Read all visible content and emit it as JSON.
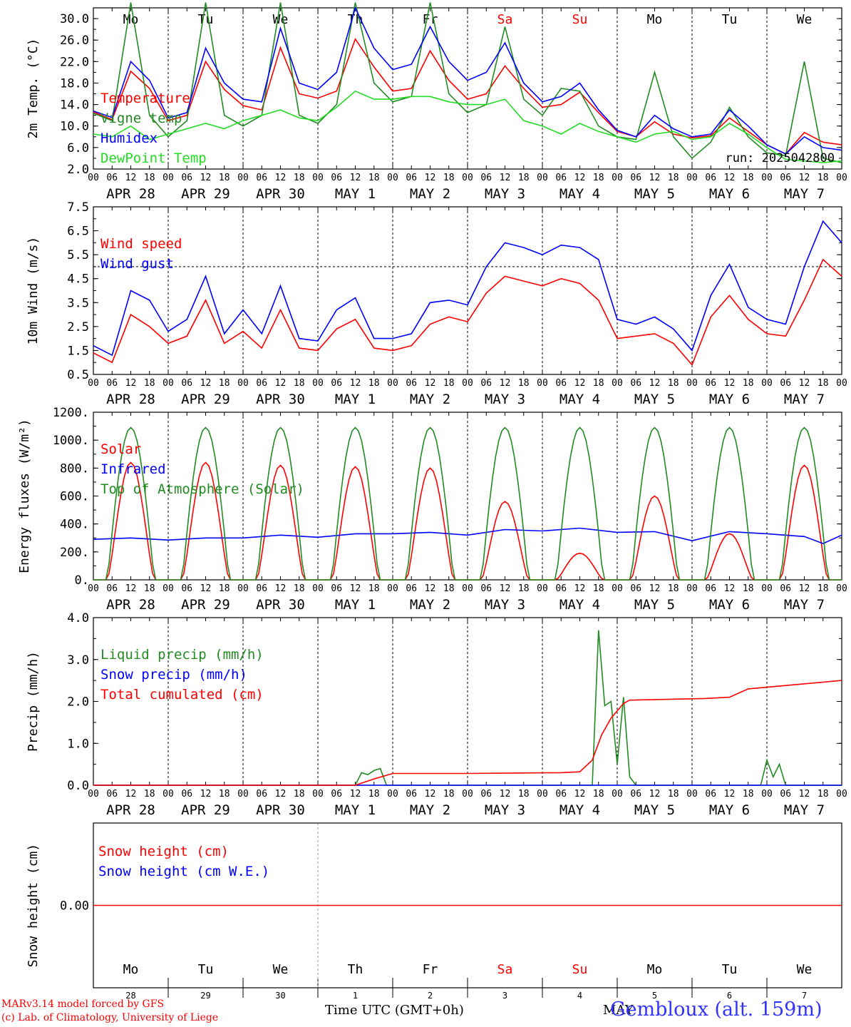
{
  "day_labels": [
    {
      "name": "Mo",
      "color": "#000000"
    },
    {
      "name": "Tu",
      "color": "#000000"
    },
    {
      "name": "We",
      "color": "#000000"
    },
    {
      "name": "Th",
      "color": "#000000"
    },
    {
      "name": "Fr",
      "color": "#000000"
    },
    {
      "name": "Sa",
      "color": "#ff0000"
    },
    {
      "name": "Su",
      "color": "#ff0000"
    },
    {
      "name": "Mo",
      "color": "#000000"
    },
    {
      "name": "Tu",
      "color": "#000000"
    },
    {
      "name": "We",
      "color": "#000000"
    }
  ],
  "date_labels": [
    "APR 28",
    "APR 29",
    "APR 30",
    "MAY  1",
    "MAY  2",
    "MAY  3",
    "MAY  4",
    "MAY  5",
    "MAY  6",
    "MAY  7"
  ],
  "hour_ticks": [
    "00",
    "06",
    "12",
    "18"
  ],
  "hour_ticks_end": "00",
  "day_numbers": [
    "28",
    "29",
    "30",
    "1",
    "2",
    "3",
    "4",
    "5",
    "6",
    "7"
  ],
  "month_label": "MAY",
  "footer": {
    "credit_line1": "MARv3.14 model forced by GFS",
    "credit_line2": "(c) Lab. of Climatology, University of Liege",
    "xlabel": "Time UTC (GMT+0h)",
    "station": "Gembloux (alt. 159m)"
  },
  "colors": {
    "red": "#ff0000",
    "green": "#228b22",
    "blue": "#0000ff",
    "lightgreen": "#22dd22",
    "station": "#3333ff"
  },
  "chart_data": [
    {
      "type": "line",
      "ylabel": "2m Temp. (°C)",
      "ylim": [
        2,
        32
      ],
      "yticks": [
        "2.0",
        "6.0",
        "10.0",
        "14.0",
        "18.0",
        "22.0",
        "26.0",
        "30.0"
      ],
      "show_day_labels": true,
      "annotation": "run: 2025042800",
      "x_unit": "hours since APR 28 00 UTC",
      "series": [
        {
          "name": "Temperature",
          "color": "red",
          "x": [
            0,
            6,
            12,
            18,
            24,
            30,
            36,
            42,
            48,
            54,
            60,
            66,
            72,
            78,
            84,
            90,
            96,
            102,
            108,
            114,
            120,
            126,
            132,
            138,
            144,
            150,
            156,
            162,
            168,
            174,
            180,
            186,
            192,
            198,
            204,
            210,
            216,
            222,
            228,
            234,
            240
          ],
          "y": [
            12.6,
            11.2,
            20.2,
            17.0,
            11.0,
            12.0,
            22.0,
            16.8,
            13.8,
            13.0,
            24.6,
            16.0,
            15.2,
            16.5,
            26.2,
            21.0,
            16.5,
            17.0,
            24.0,
            18.5,
            15.0,
            16.0,
            21.2,
            17.0,
            13.5,
            14.0,
            16.3,
            12.5,
            9.0,
            8.0,
            10.8,
            8.5,
            7.8,
            8.2,
            11.5,
            9.0,
            6.5,
            4.8,
            8.8,
            7.0,
            6.5
          ]
        },
        {
          "name": "Vigne temp",
          "color": "green",
          "x": [
            0,
            6,
            12,
            18,
            24,
            30,
            36,
            42,
            48,
            54,
            60,
            66,
            72,
            78,
            84,
            90,
            96,
            102,
            108,
            114,
            120,
            126,
            132,
            138,
            144,
            150,
            156,
            162,
            168,
            174,
            180,
            186,
            192,
            198,
            204,
            210,
            216,
            222,
            228,
            234,
            240
          ],
          "y": [
            12.4,
            11.0,
            33.0,
            12.0,
            8.0,
            11.0,
            33.0,
            12.0,
            10.0,
            12.0,
            33.0,
            12.0,
            10.5,
            14.0,
            33.0,
            18.0,
            14.5,
            15.5,
            33.0,
            16.0,
            12.5,
            14.0,
            28.5,
            15.0,
            12.0,
            17.0,
            16.5,
            10.0,
            8.0,
            7.5,
            20.0,
            8.0,
            4.0,
            7.0,
            13.5,
            8.0,
            5.0,
            4.5,
            22.0,
            4.0,
            3.2
          ]
        },
        {
          "name": "Humidex",
          "color": "blue",
          "x": [
            0,
            6,
            12,
            18,
            24,
            30,
            36,
            42,
            48,
            54,
            60,
            66,
            72,
            78,
            84,
            90,
            96,
            102,
            108,
            114,
            120,
            126,
            132,
            138,
            144,
            150,
            156,
            162,
            168,
            174,
            180,
            186,
            192,
            198,
            204,
            210,
            216,
            222,
            228,
            234,
            240
          ],
          "y": [
            12.8,
            11.6,
            22.0,
            18.5,
            11.5,
            12.5,
            24.5,
            18.0,
            15.0,
            14.5,
            28.2,
            18.0,
            16.8,
            20.0,
            32.0,
            24.5,
            20.5,
            21.5,
            28.5,
            22.0,
            18.5,
            20.0,
            25.5,
            18.0,
            14.5,
            15.5,
            18.0,
            13.0,
            9.2,
            8.0,
            12.0,
            9.5,
            8.0,
            8.5,
            13.0,
            10.0,
            6.5,
            4.8,
            8.0,
            6.0,
            5.5
          ]
        },
        {
          "name": "DewPoint Temp",
          "color": "lightgreen",
          "x": [
            0,
            6,
            12,
            18,
            24,
            30,
            36,
            42,
            48,
            54,
            60,
            66,
            72,
            78,
            84,
            90,
            96,
            102,
            108,
            114,
            120,
            126,
            132,
            138,
            144,
            150,
            156,
            162,
            168,
            174,
            180,
            186,
            192,
            198,
            204,
            210,
            216,
            222,
            228,
            234,
            240
          ],
          "y": [
            8.5,
            8.0,
            10.0,
            7.5,
            8.5,
            9.5,
            10.5,
            9.5,
            11.0,
            12.0,
            13.0,
            11.5,
            11.0,
            13.5,
            16.5,
            15.0,
            15.0,
            15.5,
            15.5,
            14.5,
            14.0,
            14.0,
            15.0,
            11.0,
            10.0,
            8.5,
            10.5,
            9.0,
            8.0,
            7.0,
            8.5,
            9.0,
            7.5,
            8.0,
            10.5,
            8.5,
            6.0,
            3.8,
            3.5,
            3.2,
            3.5
          ]
        }
      ]
    },
    {
      "type": "line",
      "ylabel": "10m Wind (m/s)",
      "ylim": [
        0.5,
        7.5
      ],
      "yticks": [
        "0.5",
        "1.5",
        "2.5",
        "3.5",
        "4.5",
        "5.5",
        "6.5",
        "7.5"
      ],
      "dashed_y": 5.0,
      "x_unit": "hours since APR 28 00 UTC",
      "series": [
        {
          "name": "Wind speed",
          "color": "red",
          "x": [
            0,
            6,
            12,
            18,
            24,
            30,
            36,
            42,
            48,
            54,
            60,
            66,
            72,
            78,
            84,
            90,
            96,
            102,
            108,
            114,
            120,
            126,
            132,
            138,
            144,
            150,
            156,
            162,
            168,
            174,
            180,
            186,
            192,
            198,
            204,
            210,
            216,
            222,
            228,
            234,
            240
          ],
          "y": [
            1.4,
            1.0,
            3.0,
            2.5,
            1.8,
            2.1,
            3.6,
            1.8,
            2.3,
            1.6,
            3.2,
            1.6,
            1.5,
            2.4,
            2.8,
            1.6,
            1.5,
            1.7,
            2.6,
            2.9,
            2.7,
            3.9,
            4.6,
            4.4,
            4.2,
            4.5,
            4.3,
            3.6,
            2.0,
            2.1,
            2.2,
            1.8,
            0.9,
            2.9,
            3.8,
            2.8,
            2.2,
            2.1,
            3.6,
            5.3,
            4.6
          ]
        },
        {
          "name": "Wind gust",
          "color": "blue",
          "x": [
            0,
            6,
            12,
            18,
            24,
            30,
            36,
            42,
            48,
            54,
            60,
            66,
            72,
            78,
            84,
            90,
            96,
            102,
            108,
            114,
            120,
            126,
            132,
            138,
            144,
            150,
            156,
            162,
            168,
            174,
            180,
            186,
            192,
            198,
            204,
            210,
            216,
            222,
            228,
            234,
            240
          ],
          "y": [
            1.7,
            1.3,
            4.0,
            3.6,
            2.3,
            2.8,
            4.6,
            2.2,
            3.2,
            2.2,
            4.2,
            2.0,
            1.9,
            3.2,
            3.7,
            2.0,
            2.0,
            2.2,
            3.5,
            3.6,
            3.4,
            5.0,
            6.0,
            5.8,
            5.5,
            5.9,
            5.8,
            5.3,
            2.8,
            2.6,
            2.9,
            2.4,
            1.5,
            3.8,
            5.1,
            3.3,
            2.8,
            2.6,
            5.0,
            6.9,
            6.0
          ]
        }
      ]
    },
    {
      "type": "line",
      "ylabel": "Energy fluxes (W/m²)",
      "ylim": [
        0,
        1200
      ],
      "yticks": [
        "0.",
        "200.",
        "400.",
        "600.",
        "800.",
        "1000.",
        "1200."
      ],
      "x_unit": "hours since APR 28 00 UTC",
      "toa_peak": 1090,
      "sunrise_hour": 4.5,
      "sunset_hour": 19.5,
      "solar_peaks": [
        840,
        840,
        820,
        810,
        800,
        560,
        190,
        600,
        330,
        820
      ],
      "series": [
        {
          "name": "Solar",
          "color": "red",
          "x": [],
          "y": []
        },
        {
          "name": "Infrared",
          "color": "blue",
          "x": [
            0,
            12,
            24,
            36,
            48,
            60,
            72,
            84,
            96,
            108,
            120,
            132,
            144,
            156,
            168,
            180,
            192,
            204,
            216,
            228,
            234,
            240
          ],
          "y": [
            290,
            300,
            285,
            300,
            300,
            320,
            305,
            330,
            330,
            340,
            320,
            360,
            350,
            370,
            340,
            345,
            280,
            345,
            330,
            310,
            260,
            320
          ]
        },
        {
          "name": "Top of Atmosphere (Solar)",
          "color": "green",
          "x": [],
          "y": []
        }
      ]
    },
    {
      "type": "line",
      "ylabel": "Precip (mm/h)",
      "ylim": [
        0,
        4
      ],
      "yticks": [
        "0.0",
        "1.0",
        "2.0",
        "3.0",
        "4.0"
      ],
      "x_unit": "hours since APR 28 00 UTC",
      "series": [
        {
          "name": "Liquid precip (mm/h)",
          "color": "green",
          "x": [
            0,
            84,
            86,
            88,
            90,
            92,
            94,
            96,
            160,
            162,
            164,
            166,
            168,
            170,
            172,
            174,
            176,
            214,
            216,
            218,
            220,
            222,
            240
          ],
          "y": [
            0,
            0,
            0.3,
            0.25,
            0.35,
            0.4,
            0.0,
            0,
            0,
            3.7,
            1.9,
            2.0,
            0.5,
            2.1,
            0.2,
            0.0,
            0,
            0,
            0.6,
            0.2,
            0.5,
            0,
            0
          ]
        },
        {
          "name": "Snow precip (mm/h)",
          "color": "blue",
          "x": [
            0,
            240
          ],
          "y": [
            0,
            0
          ]
        },
        {
          "name": "Total cumulated (cm)",
          "color": "red",
          "x": [
            0,
            84,
            90,
            96,
            120,
            150,
            156,
            160,
            163,
            166,
            170,
            172,
            196,
            204,
            210,
            222,
            240
          ],
          "y": [
            0,
            0,
            0.15,
            0.28,
            0.28,
            0.3,
            0.32,
            0.6,
            1.2,
            1.6,
            1.95,
            2.03,
            2.07,
            2.1,
            2.3,
            2.38,
            2.5
          ]
        }
      ]
    },
    {
      "type": "line",
      "ylabel": "Snow height (cm)",
      "yticks": [
        "0.00"
      ],
      "x_unit": "hours since APR 28 00 UTC",
      "series": [
        {
          "name": "Snow height (cm)",
          "color": "red",
          "x": [
            0,
            240
          ],
          "y": [
            0,
            0
          ]
        },
        {
          "name": "Snow height (cm W.E.)",
          "color": "blue",
          "x": [],
          "y": []
        }
      ]
    }
  ]
}
